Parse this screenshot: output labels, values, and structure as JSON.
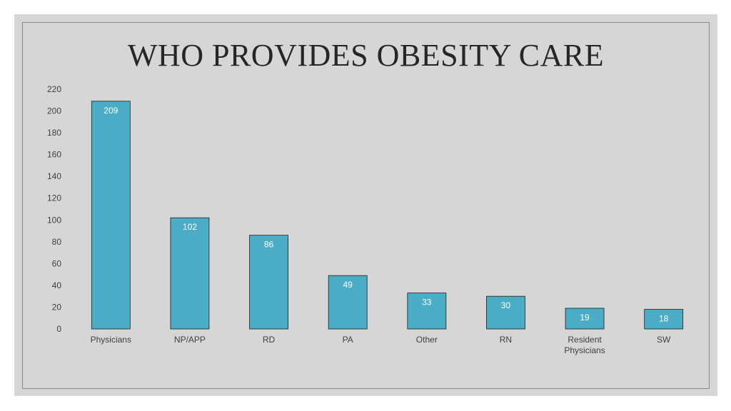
{
  "chart_data": {
    "type": "bar",
    "title": "WHO PROVIDES OBESITY CARE",
    "categories": [
      "Physicians",
      "NP/APP",
      "RD",
      "PA",
      "Other",
      "RN",
      "Resident Physicians",
      "SW"
    ],
    "category_lines": [
      [
        "Physicians"
      ],
      [
        "NP/APP"
      ],
      [
        "RD"
      ],
      [
        "PA"
      ],
      [
        "Other"
      ],
      [
        "RN"
      ],
      [
        "Resident",
        "Physicians"
      ],
      [
        "SW"
      ]
    ],
    "values": [
      209,
      102,
      86,
      49,
      33,
      30,
      19,
      18
    ],
    "ylim": [
      0,
      220
    ],
    "yticks": [
      0,
      20,
      40,
      60,
      80,
      100,
      120,
      140,
      160,
      180,
      200,
      220
    ],
    "grid": false,
    "legend": "none",
    "bar_color": "#4bacc6"
  }
}
